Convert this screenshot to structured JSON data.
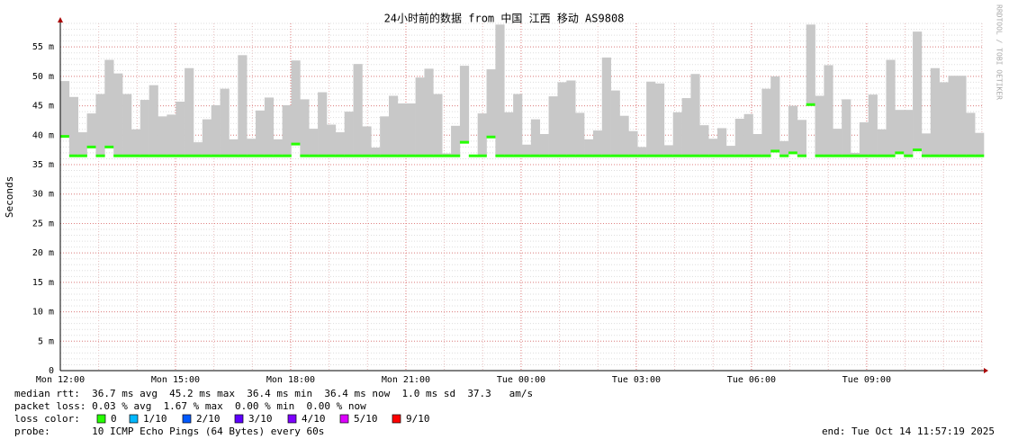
{
  "chart_data": {
    "type": "smoke",
    "title": "24小时前的数据 from 中国 江西 移动 AS9808",
    "y_label": "Seconds",
    "watermark": "RRDTOOL / TOBI OETIKER",
    "ylim": [
      0,
      59
    ],
    "yticks": [
      {
        "value": 0,
        "label": "0"
      },
      {
        "value": 5,
        "label": "5 m"
      },
      {
        "value": 10,
        "label": "10 m"
      },
      {
        "value": 15,
        "label": "15 m"
      },
      {
        "value": 20,
        "label": "20 m"
      },
      {
        "value": 25,
        "label": "25 m"
      },
      {
        "value": 30,
        "label": "30 m"
      },
      {
        "value": 35,
        "label": "35 m"
      },
      {
        "value": 40,
        "label": "40 m"
      },
      {
        "value": 45,
        "label": "45 m"
      },
      {
        "value": 50,
        "label": "50 m"
      },
      {
        "value": 55,
        "label": "55 m"
      }
    ],
    "xlim": [
      0,
      24.05
    ],
    "xticks": [
      {
        "value": 0,
        "label": "Mon 12:00"
      },
      {
        "value": 3,
        "label": "Mon 15:00"
      },
      {
        "value": 6,
        "label": "Mon 18:00"
      },
      {
        "value": 9,
        "label": "Mon 21:00"
      },
      {
        "value": 12,
        "label": "Tue 00:00"
      },
      {
        "value": 15,
        "label": "Tue 03:00"
      },
      {
        "value": 18,
        "label": "Tue 06:00"
      },
      {
        "value": 21,
        "label": "Tue 09:00"
      }
    ],
    "smoke_color": "#c8c8c8",
    "median_color": "#26ff00",
    "max": [
      49.2,
      46.5,
      40.5,
      43.7,
      47,
      52.8,
      50.5,
      47,
      41,
      46,
      48.5,
      43.2,
      43.5,
      45.7,
      51.4,
      38.8,
      42.7,
      45.1,
      47.9,
      39.3,
      53.6,
      39.4,
      44.2,
      46.4,
      39.3,
      45.1,
      52.7,
      46.1,
      41.1,
      47.3,
      41.8,
      40.5,
      44,
      52.1,
      41.5,
      37.9,
      43.2,
      46.7,
      45.4,
      45.4,
      49.8,
      51.3,
      47,
      36.9,
      41.6,
      51.8,
      36.5,
      43.7,
      51.2,
      58.8,
      43.9,
      47,
      38.4,
      42.7,
      40.2,
      46.6,
      49,
      49.3,
      43.8,
      39.3,
      40.8,
      53.2,
      47.6,
      43.3,
      40.7,
      38,
      49.1,
      48.8,
      38.3,
      43.9,
      46.3,
      50.4,
      41.7,
      39.4,
      41.2,
      38.2,
      42.8,
      43.6,
      40.2,
      47.9,
      50,
      39,
      45,
      42.6,
      58.8,
      46.7,
      51.9,
      41.1,
      46.1,
      37,
      42.2,
      46.9,
      41,
      52.8,
      44.3,
      44.3,
      57.6,
      40.3,
      51.4,
      49,
      50.1,
      50.1,
      43.8,
      40.4
    ],
    "median": [
      39.8,
      36.5,
      36.5,
      38,
      36.5,
      38,
      36.5,
      36.5,
      36.5,
      36.5,
      36.5,
      36.5,
      36.5,
      36.5,
      36.5,
      36.5,
      36.5,
      36.5,
      36.5,
      36.5,
      36.5,
      36.5,
      36.5,
      36.5,
      36.5,
      36.5,
      38.5,
      36.5,
      36.5,
      36.5,
      36.5,
      36.5,
      36.5,
      36.5,
      36.5,
      36.5,
      36.5,
      36.5,
      36.5,
      36.5,
      36.5,
      36.5,
      36.5,
      36.5,
      36.5,
      38.8,
      36.5,
      36.5,
      39.7,
      36.5,
      36.5,
      36.5,
      36.5,
      36.5,
      36.5,
      36.5,
      36.5,
      36.5,
      36.5,
      36.5,
      36.5,
      36.5,
      36.5,
      36.5,
      36.5,
      36.5,
      36.5,
      36.5,
      36.5,
      36.5,
      36.5,
      36.5,
      36.5,
      36.5,
      36.5,
      36.5,
      36.5,
      36.5,
      36.5,
      36.5,
      37.3,
      36.5,
      37,
      36.5,
      45.2,
      36.5,
      36.5,
      36.5,
      36.5,
      36.5,
      36.5,
      36.5,
      36.5,
      36.5,
      37,
      36.5,
      37.5,
      36.5,
      36.5,
      36.5,
      36.5,
      36.5,
      36.5,
      36.5
    ]
  },
  "footer": {
    "median_rtt": "median rtt:  36.7 ms avg  45.2 ms max  36.4 ms min  36.4 ms now  1.0 ms sd  37.3   am/s",
    "packet_loss": "packet loss: 0.03 % avg  1.67 % max  0.00 % min  0.00 % now",
    "loss_color_label": "loss color:",
    "loss_colors": [
      {
        "label": "0",
        "color": "#26ff00"
      },
      {
        "label": "1/10",
        "color": "#00b8ff"
      },
      {
        "label": "2/10",
        "color": "#0059ff"
      },
      {
        "label": "3/10",
        "color": "#5e00ff"
      },
      {
        "label": "4/10",
        "color": "#7e00ff"
      },
      {
        "label": "5/10",
        "color": "#dd00ff"
      },
      {
        "label": "9/10",
        "color": "#ff0000"
      }
    ],
    "probe": "probe:       10 ICMP Echo Pings (64 Bytes) every 60s",
    "end": "end: Tue Oct 14 11:57:19 2025"
  }
}
